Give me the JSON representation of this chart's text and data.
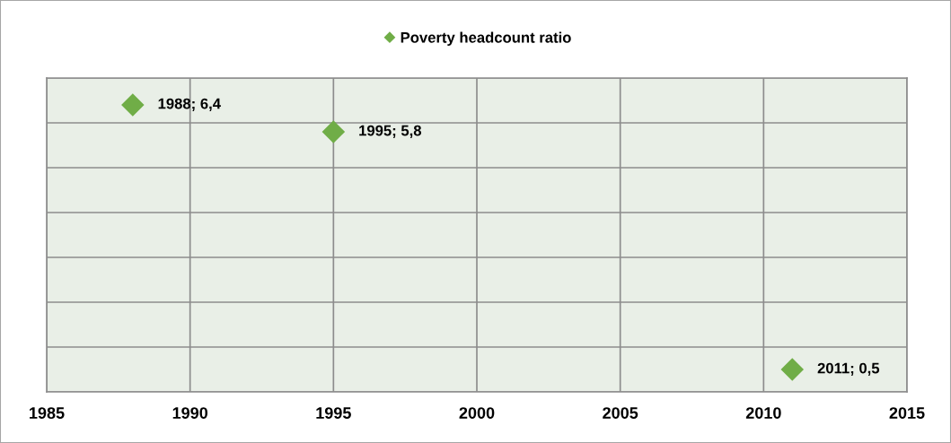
{
  "chart_data": {
    "type": "scatter",
    "legend": "top",
    "marker": "diamond",
    "grid": true,
    "tick_labels": "x",
    "xlim": [
      1985,
      2015
    ],
    "xticks": [
      1985,
      1990,
      1995,
      2000,
      2005,
      2010,
      2015
    ],
    "ylim": [
      0,
      7
    ],
    "yticks": [
      {
        "value": 0,
        "label": null
      },
      {
        "value": 1,
        "label": null
      },
      {
        "value": 2,
        "label": null
      },
      {
        "value": 3,
        "label": null
      },
      {
        "value": 4,
        "label": null
      },
      {
        "value": 5,
        "label": null
      },
      {
        "value": 6,
        "label": null
      },
      {
        "value": 7,
        "label": null
      }
    ],
    "series": [
      {
        "name": "Poverty headcount ratio",
        "color": "#70ad47",
        "x": [
          1988,
          1995,
          2011
        ],
        "values": [
          6.4,
          5.8,
          0.5
        ],
        "value_labels": [
          "1988; 6,4",
          "1995; 5,8",
          "2011; 0,5"
        ]
      }
    ]
  }
}
